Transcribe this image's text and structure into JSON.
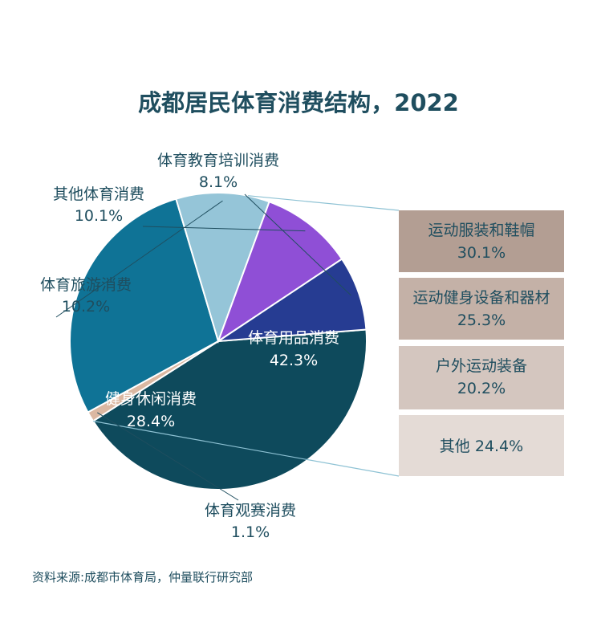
{
  "chart_data": {
    "type": "pie",
    "title": "成都居民体育消费结构，2022",
    "slices": [
      {
        "label": "体育用品消费",
        "value": 42.3,
        "value_text": "42.3%",
        "color": "#0e4a5c"
      },
      {
        "label": "体育观赛消费",
        "value": 1.1,
        "value_text": "1.1%",
        "color": "#dbb8a2"
      },
      {
        "label": "健身休闲消费",
        "value": 28.4,
        "value_text": "28.4%",
        "color": "#0f7396"
      },
      {
        "label": "体育旅游消费",
        "value": 10.2,
        "value_text": "10.2%",
        "color": "#95c5d8"
      },
      {
        "label": "其他体育消费",
        "value": 10.1,
        "value_text": "10.1%",
        "color": "#8f4fd6"
      },
      {
        "label": "体育教育培训消费",
        "value": 8.1,
        "value_text": "8.1%",
        "color": "#263c92"
      }
    ],
    "breakdown": {
      "parent": "体育用品消费",
      "items": [
        {
          "label": "运动服装和鞋帽",
          "value": 30.1,
          "value_text": "30.1%",
          "color": "#b39e93"
        },
        {
          "label": "运动健身设备和器材",
          "value": 25.3,
          "value_text": "25.3%",
          "color": "#c4b1a7"
        },
        {
          "label": "户外运动装备",
          "value": 20.2,
          "value_text": "20.2%",
          "color": "#d4c6bf"
        },
        {
          "label": "其他",
          "value": 24.4,
          "value_text": "24.4%",
          "color": "#e4dbd6"
        }
      ]
    }
  },
  "source": "资料来源:成都市体育局，仲量联行研究部"
}
